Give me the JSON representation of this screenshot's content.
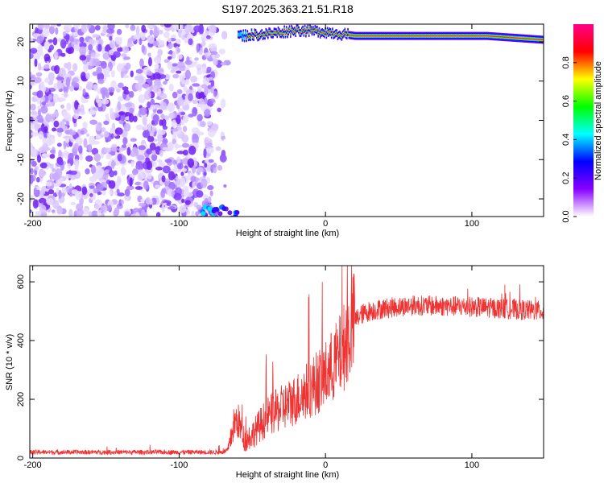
{
  "chart_data": [
    {
      "type": "heatmap",
      "title": "S197.2025.363.21.51.R18",
      "xlabel": "Height of straight line (km)",
      "ylabel": "Frequency (Hz)",
      "xlim": [
        -202,
        149
      ],
      "ylim": [
        -24.5,
        24.5
      ],
      "xticks": [
        -200,
        -100,
        0,
        100
      ],
      "yticks": [
        -20,
        -10,
        0,
        10,
        20
      ],
      "noise_region_x": [
        -202,
        -75
      ],
      "band": {
        "x": [
          -60,
          149
        ],
        "freq_hz": [
          21.5,
          22,
          23,
          22.5,
          21.5,
          21.5,
          21.5,
          20.5
        ],
        "band_x": [
          -60,
          -40,
          -20,
          0,
          20,
          100,
          110,
          149
        ]
      },
      "colorbar": {
        "label": "Normalized spectral amplitude",
        "range": [
          0.0,
          1.0
        ],
        "ticks": [
          "0.0",
          "0.2",
          "0.4",
          "0.6",
          "0.8"
        ],
        "colors": [
          "#ffffff",
          "#8800ff",
          "#0000ff",
          "#00ffff",
          "#00ff00",
          "#ffff00",
          "#ff0000",
          "#ff0088"
        ]
      }
    },
    {
      "type": "line",
      "xlabel": "Height of straight line (km)",
      "ylabel": "SNR (10 * v/v)",
      "xlim": [
        -202,
        149
      ],
      "ylim": [
        0,
        655
      ],
      "xticks": [
        -200,
        -100,
        0,
        100
      ],
      "yticks": [
        0,
        200,
        400,
        600
      ],
      "color": "#ee3333",
      "series": [
        {
          "name": "SNR",
          "x": [
            -202,
            -70,
            -66,
            -63,
            -60,
            -55,
            -50,
            -45,
            -40,
            -30,
            -20,
            -10,
            0,
            10,
            18,
            20,
            25,
            30,
            40,
            60,
            100,
            149
          ],
          "y": [
            20,
            20,
            30,
            110,
            130,
            60,
            80,
            110,
            140,
            170,
            200,
            240,
            280,
            350,
            440,
            470,
            490,
            500,
            510,
            520,
            515,
            500
          ]
        }
      ]
    }
  ]
}
